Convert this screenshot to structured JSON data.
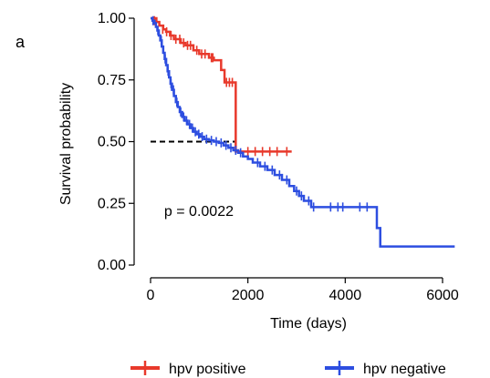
{
  "panel_label": "a",
  "chart_data": {
    "type": "line",
    "subtype": "kaplan-meier",
    "title": "",
    "xlabel": "Time (days)",
    "ylabel": "Survival probability",
    "xlim": [
      -100,
      6300
    ],
    "ylim": [
      -0.02,
      1.02
    ],
    "x_ticks": [
      0,
      2000,
      4000,
      6000
    ],
    "x_tick_labels": [
      "0",
      "2000",
      "4000",
      "6000"
    ],
    "y_ticks": [
      0.0,
      0.25,
      0.5,
      0.75,
      1.0
    ],
    "y_tick_labels": [
      "0.00",
      "0.25",
      "0.50",
      "0.75",
      "1.00"
    ],
    "grid": false,
    "legend_position": "bottom",
    "annotations": [
      {
        "text": "p = 0.0022",
        "x": 280,
        "y": 0.2
      }
    ],
    "median_line": {
      "y": 0.5,
      "x_end": 1750
    },
    "series": [
      {
        "name": "hpv positive",
        "color": "#e8392b",
        "steps": [
          [
            0,
            1.0
          ],
          [
            120,
            0.985
          ],
          [
            180,
            0.97
          ],
          [
            260,
            0.955
          ],
          [
            320,
            0.945
          ],
          [
            400,
            0.93
          ],
          [
            480,
            0.915
          ],
          [
            620,
            0.9
          ],
          [
            720,
            0.89
          ],
          [
            880,
            0.87
          ],
          [
            1000,
            0.855
          ],
          [
            1200,
            0.84
          ],
          [
            1300,
            0.83
          ],
          [
            1450,
            0.79
          ],
          [
            1520,
            0.74
          ],
          [
            1750,
            0.46
          ],
          [
            2900,
            0.46
          ]
        ],
        "censored": [
          [
            80,
            0.99
          ],
          [
            250,
            0.955
          ],
          [
            330,
            0.945
          ],
          [
            420,
            0.93
          ],
          [
            520,
            0.915
          ],
          [
            600,
            0.915
          ],
          [
            680,
            0.9
          ],
          [
            760,
            0.89
          ],
          [
            820,
            0.89
          ],
          [
            950,
            0.87
          ],
          [
            1050,
            0.855
          ],
          [
            1120,
            0.855
          ],
          [
            1250,
            0.84
          ],
          [
            1280,
            0.84
          ],
          [
            1560,
            0.74
          ],
          [
            1620,
            0.74
          ],
          [
            1680,
            0.74
          ],
          [
            2000,
            0.46
          ],
          [
            2150,
            0.46
          ],
          [
            2300,
            0.46
          ],
          [
            2450,
            0.46
          ],
          [
            2600,
            0.46
          ],
          [
            2800,
            0.46
          ]
        ]
      },
      {
        "name": "hpv negative",
        "color": "#2d4ee0",
        "steps": [
          [
            0,
            1.0
          ],
          [
            40,
            0.99
          ],
          [
            80,
            0.98
          ],
          [
            110,
            0.965
          ],
          [
            140,
            0.95
          ],
          [
            170,
            0.93
          ],
          [
            200,
            0.91
          ],
          [
            230,
            0.885
          ],
          [
            260,
            0.86
          ],
          [
            290,
            0.835
          ],
          [
            320,
            0.81
          ],
          [
            350,
            0.785
          ],
          [
            380,
            0.76
          ],
          [
            410,
            0.735
          ],
          [
            440,
            0.71
          ],
          [
            480,
            0.685
          ],
          [
            520,
            0.66
          ],
          [
            560,
            0.64
          ],
          [
            600,
            0.62
          ],
          [
            650,
            0.6
          ],
          [
            700,
            0.585
          ],
          [
            760,
            0.57
          ],
          [
            820,
            0.555
          ],
          [
            880,
            0.54
          ],
          [
            950,
            0.53
          ],
          [
            1020,
            0.52
          ],
          [
            1100,
            0.51
          ],
          [
            1200,
            0.505
          ],
          [
            1300,
            0.5
          ],
          [
            1400,
            0.495
          ],
          [
            1500,
            0.485
          ],
          [
            1600,
            0.475
          ],
          [
            1700,
            0.465
          ],
          [
            1800,
            0.455
          ],
          [
            1900,
            0.44
          ],
          [
            2000,
            0.43
          ],
          [
            2100,
            0.415
          ],
          [
            2250,
            0.4
          ],
          [
            2400,
            0.385
          ],
          [
            2550,
            0.365
          ],
          [
            2700,
            0.345
          ],
          [
            2850,
            0.32
          ],
          [
            2950,
            0.3
          ],
          [
            3050,
            0.28
          ],
          [
            3150,
            0.26
          ],
          [
            3300,
            0.235
          ],
          [
            4650,
            0.15
          ],
          [
            4720,
            0.075
          ],
          [
            6250,
            0.075
          ]
        ],
        "censored": [
          [
            50,
            0.99
          ],
          [
            150,
            0.95
          ],
          [
            220,
            0.91
          ],
          [
            300,
            0.835
          ],
          [
            360,
            0.785
          ],
          [
            420,
            0.735
          ],
          [
            470,
            0.71
          ],
          [
            540,
            0.66
          ],
          [
            620,
            0.62
          ],
          [
            680,
            0.6
          ],
          [
            740,
            0.585
          ],
          [
            800,
            0.57
          ],
          [
            860,
            0.555
          ],
          [
            920,
            0.54
          ],
          [
            990,
            0.53
          ],
          [
            1060,
            0.52
          ],
          [
            1150,
            0.51
          ],
          [
            1250,
            0.505
          ],
          [
            1350,
            0.5
          ],
          [
            1450,
            0.495
          ],
          [
            1550,
            0.485
          ],
          [
            1650,
            0.475
          ],
          [
            1750,
            0.465
          ],
          [
            1850,
            0.455
          ],
          [
            2200,
            0.415
          ],
          [
            2350,
            0.4
          ],
          [
            2500,
            0.385
          ],
          [
            2650,
            0.365
          ],
          [
            2800,
            0.345
          ],
          [
            3000,
            0.3
          ],
          [
            3100,
            0.28
          ],
          [
            3250,
            0.26
          ],
          [
            3350,
            0.235
          ],
          [
            3700,
            0.235
          ],
          [
            3850,
            0.235
          ],
          [
            3950,
            0.235
          ],
          [
            4300,
            0.235
          ],
          [
            4450,
            0.235
          ]
        ]
      }
    ]
  }
}
